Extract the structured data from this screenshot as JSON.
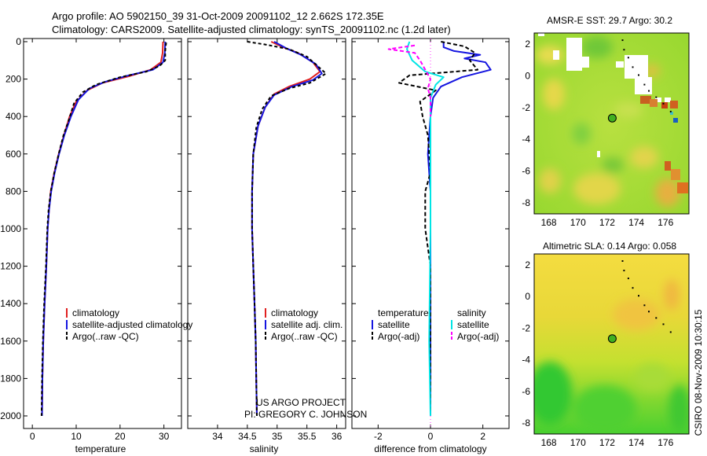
{
  "header": {
    "line1": "Argo profile: AO 5902150_39 31-Oct-2009 20091102_12 2.662S 172.35E",
    "line2": "Climatology: CARS2009. Satellite-adjusted climatology: synTS_20091102.nc (1.2d later)"
  },
  "side_label": "CSIRO 08-Nov-2009 10:30:15",
  "colors": {
    "red": "#e02020",
    "blue": "#1515e0",
    "black": "#000000",
    "cyan": "#00e5e5",
    "magenta": "#ff00ff"
  },
  "chart_data": [
    {
      "type": "line",
      "name": "temperature-profile",
      "xlabel": "temperature",
      "ylabel": "",
      "xlim": [
        -2,
        34
      ],
      "ylim": [
        2050,
        0
      ],
      "xticks": [
        0,
        10,
        20,
        30
      ],
      "yticks": [
        0,
        200,
        400,
        600,
        800,
        1000,
        1200,
        1400,
        1600,
        1800,
        2000
      ],
      "legend": [
        "climatology",
        "satellite-adjusted climatology",
        "Argo(..raw -QC)"
      ],
      "series": [
        {
          "name": "climatology",
          "color": "red",
          "dash": "",
          "points": [
            [
              29.8,
              0
            ],
            [
              29.7,
              60
            ],
            [
              29.3,
              110
            ],
            [
              27,
              150
            ],
            [
              22,
              185
            ],
            [
              16,
              220
            ],
            [
              12.5,
              260
            ],
            [
              10,
              320
            ],
            [
              8.5,
              400
            ],
            [
              7.2,
              500
            ],
            [
              6,
              600
            ],
            [
              5,
              700
            ],
            [
              4.2,
              800
            ],
            [
              3.8,
              900
            ],
            [
              3.5,
              1000
            ],
            [
              3.2,
              1200
            ],
            [
              2.8,
              1400
            ],
            [
              2.5,
              1600
            ],
            [
              2.3,
              1800
            ],
            [
              2.2,
              2000
            ]
          ]
        },
        {
          "name": "satellite-adjusted climatology",
          "color": "blue",
          "dash": "",
          "points": [
            [
              30.3,
              0
            ],
            [
              30.2,
              60
            ],
            [
              29.8,
              110
            ],
            [
              27.5,
              150
            ],
            [
              22,
              180
            ],
            [
              16.5,
              215
            ],
            [
              13,
              250
            ],
            [
              10.5,
              310
            ],
            [
              8.8,
              400
            ],
            [
              7.3,
              500
            ],
            [
              6.1,
              600
            ],
            [
              5.1,
              700
            ],
            [
              4.3,
              800
            ],
            [
              3.8,
              900
            ],
            [
              3.5,
              1000
            ],
            [
              3.2,
              1200
            ],
            [
              2.8,
              1400
            ],
            [
              2.5,
              1600
            ],
            [
              2.3,
              1800
            ],
            [
              2.2,
              2000
            ]
          ]
        },
        {
          "name": "Argo(..raw -QC)",
          "color": "black",
          "dash": "4,3",
          "points": [
            [
              30.5,
              5
            ],
            [
              30.3,
              50
            ],
            [
              30.3,
              100
            ],
            [
              29,
              130
            ],
            [
              26,
              160
            ],
            [
              20,
              190
            ],
            [
              14.5,
              230
            ],
            [
              11.5,
              270
            ],
            [
              9.5,
              330
            ],
            [
              8.3,
              420
            ],
            [
              7.1,
              500
            ],
            [
              6,
              600
            ],
            [
              5,
              700
            ],
            [
              4.2,
              800
            ],
            [
              3.7,
              900
            ],
            [
              3.4,
              1000
            ],
            [
              3.1,
              1200
            ],
            [
              2.7,
              1400
            ],
            [
              2.4,
              1600
            ],
            [
              2.2,
              1800
            ],
            [
              2.1,
              2000
            ]
          ]
        }
      ]
    },
    {
      "type": "line",
      "name": "salinity-profile",
      "xlabel": "salinity",
      "ylabel": "",
      "xlim": [
        33.5,
        36.15
      ],
      "ylim": [
        2050,
        0
      ],
      "xticks": [
        34,
        34.5,
        35,
        35.5,
        36
      ],
      "xticklabels": [
        "34",
        "34.5",
        "35",
        "35.5",
        "36"
      ],
      "legend": [
        "climatology",
        "satellite adj. clim.",
        "Argo(..raw -QC)"
      ],
      "series": [
        {
          "name": "climatology",
          "color": "red",
          "dash": "",
          "points": [
            [
              34.9,
              0
            ],
            [
              35.1,
              30
            ],
            [
              35.35,
              60
            ],
            [
              35.6,
              110
            ],
            [
              35.72,
              160
            ],
            [
              35.55,
              200
            ],
            [
              35.2,
              240
            ],
            [
              34.95,
              280
            ],
            [
              34.8,
              350
            ],
            [
              34.68,
              450
            ],
            [
              34.6,
              600
            ],
            [
              34.58,
              800
            ],
            [
              34.58,
              1000
            ],
            [
              34.6,
              1200
            ],
            [
              34.62,
              1400
            ],
            [
              34.64,
              1600
            ],
            [
              34.65,
              1800
            ],
            [
              34.66,
              2000
            ]
          ]
        },
        {
          "name": "satellite adj. clim.",
          "color": "blue",
          "dash": "",
          "points": [
            [
              34.95,
              0
            ],
            [
              35.15,
              35
            ],
            [
              35.4,
              70
            ],
            [
              35.65,
              120
            ],
            [
              35.75,
              170
            ],
            [
              35.6,
              205
            ],
            [
              35.25,
              240
            ],
            [
              34.95,
              285
            ],
            [
              34.8,
              350
            ],
            [
              34.68,
              450
            ],
            [
              34.6,
              600
            ],
            [
              34.58,
              800
            ],
            [
              34.58,
              1000
            ],
            [
              34.6,
              1200
            ],
            [
              34.62,
              1400
            ],
            [
              34.64,
              1600
            ],
            [
              34.65,
              1800
            ],
            [
              34.66,
              2000
            ]
          ]
        },
        {
          "name": "Argo(..raw -QC)",
          "color": "black",
          "dash": "4,3",
          "points": [
            [
              34.5,
              0
            ],
            [
              34.8,
              15
            ],
            [
              35.2,
              40
            ],
            [
              35.5,
              80
            ],
            [
              35.82,
              170
            ],
            [
              35.55,
              220
            ],
            [
              35.2,
              250
            ],
            [
              34.9,
              290
            ],
            [
              34.75,
              360
            ],
            [
              34.65,
              460
            ],
            [
              34.6,
              600
            ],
            [
              34.58,
              800
            ],
            [
              34.58,
              1000
            ],
            [
              34.6,
              1200
            ],
            [
              34.62,
              1400
            ],
            [
              34.64,
              1600
            ],
            [
              34.65,
              1800
            ],
            [
              34.66,
              2000
            ]
          ]
        }
      ]
    },
    {
      "type": "line",
      "name": "difference-profile",
      "xlabel": "difference from climatology",
      "ylabel": "",
      "xlim": [
        -3,
        3
      ],
      "ylim": [
        2050,
        0
      ],
      "xticks": [
        -2,
        0,
        2
      ],
      "legend_headers": [
        "temperature",
        "salinity"
      ],
      "legend": [
        "satellite",
        "Argo(-adj)",
        "satellite",
        "Argo(-adj)"
      ],
      "series": [
        {
          "name": "temperature satellite",
          "color": "blue",
          "dash": "",
          "points": [
            [
              0.5,
              0
            ],
            [
              0.5,
              30
            ],
            [
              0.9,
              50
            ],
            [
              1.9,
              70
            ],
            [
              1.3,
              90
            ],
            [
              2.1,
              110
            ],
            [
              2.3,
              150
            ],
            [
              1.2,
              190
            ],
            [
              0.4,
              240
            ],
            [
              0.1,
              300
            ],
            [
              0.0,
              400
            ],
            [
              -0.1,
              600
            ],
            [
              0,
              800
            ],
            [
              0,
              1000
            ],
            [
              0,
              1400
            ],
            [
              0,
              1800
            ],
            [
              0,
              2000
            ]
          ]
        },
        {
          "name": "temperature Argo(-adj)",
          "color": "black",
          "dash": "5,3",
          "points": [
            [
              0.4,
              0
            ],
            [
              1.3,
              25
            ],
            [
              1.7,
              60
            ],
            [
              1.5,
              100
            ],
            [
              1.8,
              150
            ],
            [
              -0.8,
              180
            ],
            [
              -1.2,
              220
            ],
            [
              0.2,
              260
            ],
            [
              -0.4,
              320
            ],
            [
              -0.3,
              400
            ],
            [
              -0.1,
              500
            ],
            [
              0,
              700
            ],
            [
              -0.2,
              800
            ],
            [
              -0.2,
              1000
            ],
            [
              0,
              1200
            ],
            [
              0,
              1600
            ],
            [
              0,
              2000
            ]
          ]
        },
        {
          "name": "salinity satellite",
          "color": "cyan",
          "dash": "",
          "points": [
            [
              -0.8,
              0
            ],
            [
              -0.9,
              40
            ],
            [
              -0.7,
              100
            ],
            [
              -0.2,
              160
            ],
            [
              0.5,
              190
            ],
            [
              0.2,
              230
            ],
            [
              0,
              300
            ],
            [
              0,
              500
            ],
            [
              0,
              1000
            ],
            [
              -0.05,
              1600
            ],
            [
              0,
              2000
            ]
          ]
        },
        {
          "name": "salinity Argo(-adj)",
          "color": "magenta",
          "dash": "5,3",
          "points": [
            [
              -0.6,
              20
            ],
            [
              -1.6,
              40
            ],
            [
              -0.6,
              60
            ],
            [
              -0.4,
              100
            ],
            [
              0,
              200
            ],
            [
              -0.1,
              250
            ],
            [
              0,
              300
            ],
            [
              0,
              400
            ]
          ]
        }
      ]
    },
    {
      "type": "heatmap",
      "name": "amsr-e-sst-map",
      "title": "AMSR-E SST: 29.7  Argo: 30.2",
      "xlim": [
        167,
        177.6
      ],
      "ylim": [
        -8.7,
        2.7
      ],
      "xticks": [
        168,
        170,
        172,
        174,
        176
      ],
      "yticks": [
        -8,
        -6,
        -4,
        -2,
        0,
        2
      ],
      "marker": [
        172.35,
        -2.662
      ]
    },
    {
      "type": "heatmap",
      "name": "altimetric-sla-map",
      "title": "Altimetric SLA: 0.14  Argo: 0.058",
      "xlim": [
        167,
        177.6
      ],
      "ylim": [
        -8.7,
        2.7
      ],
      "xticks": [
        168,
        170,
        172,
        174,
        176
      ],
      "yticks": [
        -8,
        -6,
        -4,
        -2,
        0,
        2
      ],
      "marker": [
        172.35,
        -2.662
      ]
    }
  ],
  "credit": {
    "line1": "US ARGO PROJECT",
    "line2": "PI: GREGORY C. JOHNSON"
  }
}
